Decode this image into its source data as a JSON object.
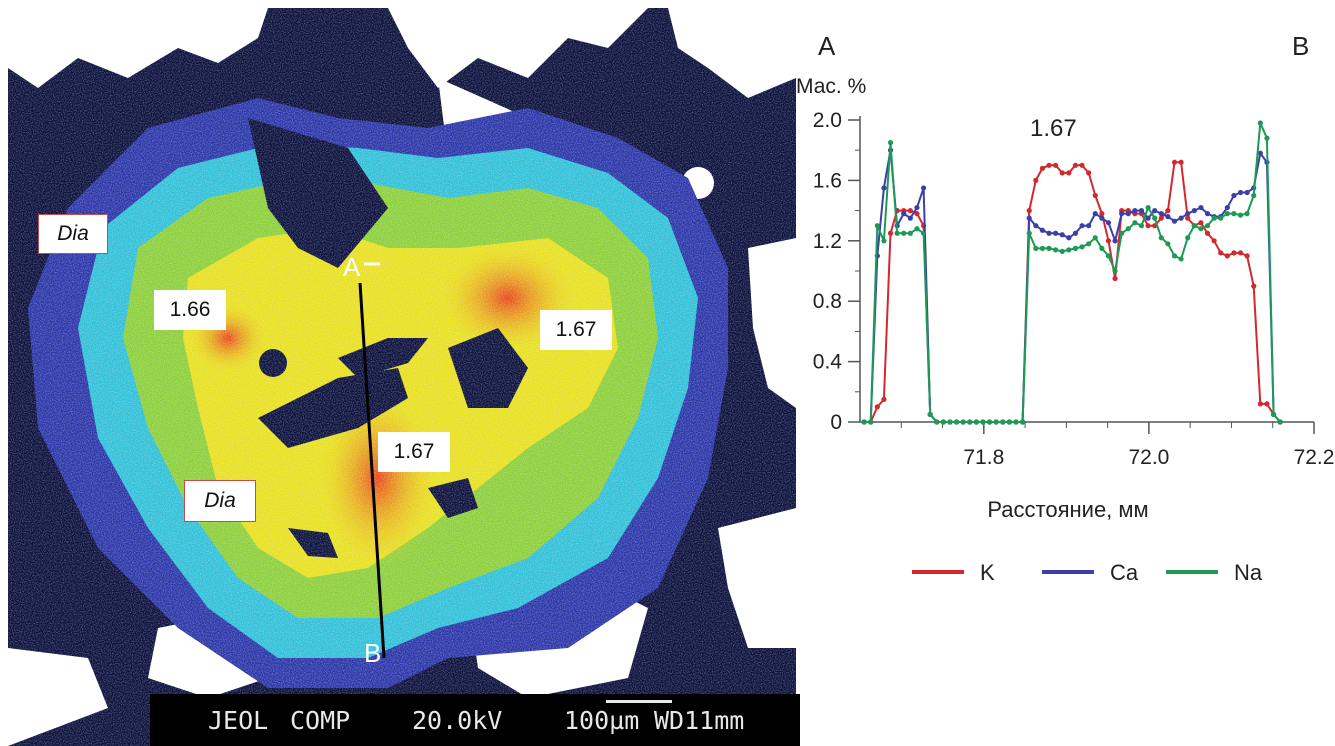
{
  "image_panel": {
    "labels": {
      "dia_1": "Dia",
      "dia_2": "Dia",
      "val_1": "1.66",
      "val_2": "1.67",
      "val_3": "1.67",
      "point_a": "A",
      "point_b": "B"
    },
    "scalebar": {
      "brand": "JEOL",
      "mode": "COMP",
      "voltage": "20.0kV",
      "scale": "100µm",
      "wd": "WD11mm"
    },
    "colors": {
      "background_dark": "#0a0f3c",
      "rim_blue": "#2a35a8",
      "cyan": "#30c0d8",
      "green": "#8ccf3a",
      "yellow": "#e8e020",
      "red": "#e8261c",
      "void": "#ffffff"
    }
  },
  "chart_data": {
    "type": "line",
    "corner_labels": {
      "left": "A",
      "right": "B"
    },
    "ylabel": "Мас. %",
    "xlabel": "Расстояние, мм",
    "annotation": "1.67",
    "xlim": [
      71.65,
      72.2
    ],
    "ylim": [
      0,
      2.0
    ],
    "x_ticks": [
      "71.8",
      "72.0",
      "72.2"
    ],
    "x_tick_values": [
      71.8,
      72.0,
      72.2
    ],
    "y_ticks": [
      "0",
      "0.4",
      "0.8",
      "1.2",
      "1.6",
      "2.0"
    ],
    "y_tick_values": [
      0,
      0.4,
      0.8,
      1.2,
      1.6,
      2.0
    ],
    "series": [
      {
        "name": "K",
        "color": "#d1292f",
        "x": [
          71.655,
          71.663,
          71.671,
          71.679,
          71.687,
          71.695,
          71.703,
          71.711,
          71.719,
          71.727,
          71.735,
          71.743,
          71.751,
          71.759,
          71.767,
          71.775,
          71.783,
          71.791,
          71.799,
          71.807,
          71.815,
          71.823,
          71.831,
          71.839,
          71.847,
          71.855,
          71.863,
          71.871,
          71.879,
          71.887,
          71.895,
          71.903,
          71.911,
          71.919,
          71.927,
          71.935,
          71.943,
          71.951,
          71.959,
          71.967,
          71.975,
          71.983,
          71.991,
          71.999,
          72.007,
          72.015,
          72.023,
          72.031,
          72.039,
          72.047,
          72.055,
          72.063,
          72.071,
          72.079,
          72.087,
          72.095,
          72.103,
          72.111,
          72.119,
          72.127,
          72.135,
          72.143,
          72.151,
          72.159
        ],
        "values": [
          0.0,
          0.0,
          0.1,
          0.15,
          1.25,
          1.4,
          1.4,
          1.4,
          1.38,
          1.3,
          0.05,
          0.0,
          0.0,
          0.0,
          0.0,
          0.0,
          0.0,
          0.0,
          0.0,
          0.0,
          0.0,
          0.0,
          0.0,
          0.0,
          0.0,
          1.4,
          1.6,
          1.68,
          1.7,
          1.7,
          1.65,
          1.65,
          1.7,
          1.7,
          1.65,
          1.5,
          1.38,
          1.2,
          0.95,
          1.4,
          1.4,
          1.38,
          1.38,
          1.3,
          1.3,
          1.35,
          1.4,
          1.72,
          1.72,
          1.35,
          1.3,
          1.32,
          1.25,
          1.2,
          1.12,
          1.1,
          1.12,
          1.12,
          1.1,
          0.9,
          0.12,
          0.12,
          0.05,
          0.0
        ]
      },
      {
        "name": "Ca",
        "color": "#3b3fa8",
        "x": [
          71.655,
          71.663,
          71.671,
          71.679,
          71.687,
          71.695,
          71.703,
          71.711,
          71.719,
          71.727,
          71.735,
          71.743,
          71.751,
          71.759,
          71.767,
          71.775,
          71.783,
          71.791,
          71.799,
          71.807,
          71.815,
          71.823,
          71.831,
          71.839,
          71.847,
          71.855,
          71.863,
          71.871,
          71.879,
          71.887,
          71.895,
          71.903,
          71.911,
          71.919,
          71.927,
          71.935,
          71.943,
          71.951,
          71.959,
          71.967,
          71.975,
          71.983,
          71.991,
          71.999,
          72.007,
          72.015,
          72.023,
          72.031,
          72.039,
          72.047,
          72.055,
          72.063,
          72.071,
          72.079,
          72.087,
          72.095,
          72.103,
          72.111,
          72.119,
          72.127,
          72.135,
          72.143,
          72.151,
          72.159
        ],
        "values": [
          0.0,
          0.0,
          1.1,
          1.55,
          1.8,
          1.3,
          1.38,
          1.35,
          1.42,
          1.55,
          0.05,
          0.0,
          0.0,
          0.0,
          0.0,
          0.0,
          0.0,
          0.0,
          0.0,
          0.0,
          0.0,
          0.0,
          0.0,
          0.0,
          0.0,
          1.35,
          1.3,
          1.27,
          1.25,
          1.25,
          1.24,
          1.22,
          1.25,
          1.3,
          1.3,
          1.38,
          1.35,
          1.32,
          1.2,
          1.38,
          1.38,
          1.4,
          1.4,
          1.35,
          1.4,
          1.38,
          1.36,
          1.33,
          1.35,
          1.38,
          1.4,
          1.42,
          1.38,
          1.36,
          1.36,
          1.42,
          1.5,
          1.52,
          1.52,
          1.55,
          1.78,
          1.72,
          0.05,
          0.0
        ]
      },
      {
        "name": "Na",
        "color": "#1e9a57",
        "x": [
          71.655,
          71.663,
          71.671,
          71.679,
          71.687,
          71.695,
          71.703,
          71.711,
          71.719,
          71.727,
          71.735,
          71.743,
          71.751,
          71.759,
          71.767,
          71.775,
          71.783,
          71.791,
          71.799,
          71.807,
          71.815,
          71.823,
          71.831,
          71.839,
          71.847,
          71.855,
          71.863,
          71.871,
          71.879,
          71.887,
          71.895,
          71.903,
          71.911,
          71.919,
          71.927,
          71.935,
          71.943,
          71.951,
          71.959,
          71.967,
          71.975,
          71.983,
          71.991,
          71.999,
          72.007,
          72.015,
          72.023,
          72.031,
          72.039,
          72.047,
          72.055,
          72.063,
          72.071,
          72.079,
          72.087,
          72.095,
          72.103,
          72.111,
          72.119,
          72.127,
          72.135,
          72.143,
          72.151,
          72.159
        ],
        "values": [
          0.0,
          0.0,
          1.3,
          1.2,
          1.85,
          1.25,
          1.25,
          1.25,
          1.28,
          1.25,
          0.05,
          0.0,
          0.0,
          0.0,
          0.0,
          0.0,
          0.0,
          0.0,
          0.0,
          0.0,
          0.0,
          0.0,
          0.0,
          0.0,
          0.0,
          1.25,
          1.15,
          1.15,
          1.15,
          1.14,
          1.13,
          1.14,
          1.15,
          1.16,
          1.18,
          1.22,
          1.15,
          1.1,
          1.0,
          1.25,
          1.28,
          1.32,
          1.3,
          1.42,
          1.35,
          1.22,
          1.18,
          1.1,
          1.08,
          1.22,
          1.3,
          1.28,
          1.3,
          1.35,
          1.35,
          1.38,
          1.38,
          1.37,
          1.38,
          1.5,
          1.98,
          1.88,
          0.05,
          0.0
        ]
      }
    ],
    "legend": [
      "K",
      "Ca",
      "Na"
    ],
    "legend_position": "bottom"
  }
}
